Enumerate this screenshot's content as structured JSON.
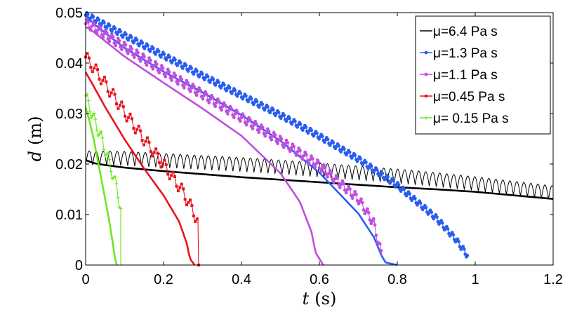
{
  "chart_data": {
    "type": "line",
    "xlabel_var": "t",
    "xlabel_unit": "(s)",
    "ylabel_var": "d",
    "ylabel_unit": "(m)",
    "xlim": [
      0,
      1.2
    ],
    "ylim": [
      0,
      0.05
    ],
    "xticks": [
      "0",
      "0.2",
      "0.4",
      "0.6",
      "0.8",
      "1",
      "1.2"
    ],
    "yticks": [
      "0",
      "0.01",
      "0.02",
      "0.03",
      "0.04",
      "0.05"
    ],
    "legend_position": "top-right",
    "series": [
      {
        "name": "μ=6.4 Pa s",
        "color": "#000000",
        "marker": "none",
        "smooth": {
          "x": [
            0,
            0.02,
            0.05,
            0.1,
            0.2,
            0.3,
            0.4,
            0.5,
            0.6,
            0.7,
            0.8,
            0.9,
            1.0,
            1.1,
            1.2
          ],
          "y": [
            0.0208,
            0.0202,
            0.0198,
            0.0193,
            0.0186,
            0.018,
            0.0174,
            0.0169,
            0.0164,
            0.0159,
            0.0154,
            0.015,
            0.0145,
            0.0138,
            0.0131
          ]
        },
        "oscillating": {
          "x": [
            0,
            0.1,
            0.2,
            0.3,
            0.4,
            0.5,
            0.6,
            0.7,
            0.8,
            0.9,
            1.0,
            1.1,
            1.2
          ],
          "y": [
            0.0212,
            0.0211,
            0.0207,
            0.0203,
            0.0199,
            0.0194,
            0.0188,
            0.0182,
            0.0176,
            0.0169,
            0.0161,
            0.0152,
            0.0143
          ],
          "amplitude": 0.0014,
          "period": 0.018,
          "x_end": 1.2
        }
      },
      {
        "name": "μ=1.3 Pa s",
        "color": "#2a5ef0",
        "marker": "dot",
        "smooth": {
          "x": [
            0,
            0.02,
            0.1,
            0.2,
            0.3,
            0.4,
            0.5,
            0.6,
            0.7,
            0.74,
            0.76,
            0.77,
            0.8
          ],
          "y": [
            0.0495,
            0.0478,
            0.043,
            0.0383,
            0.0342,
            0.0297,
            0.0246,
            0.0183,
            0.0102,
            0.0055,
            0.0018,
            0.0005,
            0
          ]
        },
        "oscillating": {
          "x": [
            0,
            0.02,
            0.1,
            0.2,
            0.3,
            0.4,
            0.5,
            0.6,
            0.7,
            0.8,
            0.9,
            0.95,
            0.98
          ],
          "y": [
            0.0495,
            0.0488,
            0.0455,
            0.0415,
            0.0375,
            0.0336,
            0.0297,
            0.0255,
            0.021,
            0.0158,
            0.0093,
            0.0051,
            0.0019
          ],
          "amplitude": 0.0006,
          "period": 0.014,
          "x_end": 0.98
        }
      },
      {
        "name": "μ=1.1 Pa s",
        "color": "#c04ee0",
        "marker": "dot",
        "smooth": {
          "x": [
            0,
            0.02,
            0.1,
            0.2,
            0.3,
            0.4,
            0.5,
            0.55,
            0.58,
            0.59,
            0.61
          ],
          "y": [
            0.0472,
            0.0462,
            0.0413,
            0.0361,
            0.031,
            0.0256,
            0.0182,
            0.0125,
            0.0065,
            0.0025,
            0
          ]
        },
        "oscillating": {
          "x": [
            0,
            0.02,
            0.1,
            0.2,
            0.3,
            0.4,
            0.5,
            0.6,
            0.7,
            0.74,
            0.76
          ],
          "y": [
            0.0478,
            0.0472,
            0.0432,
            0.0384,
            0.0338,
            0.0292,
            0.0246,
            0.0197,
            0.0131,
            0.0082,
            0.0018
          ],
          "amplitude": 0.0009,
          "period": 0.016,
          "x_end": 0.76
        }
      },
      {
        "name": "μ=0.45 Pa s",
        "color": "#e8141d",
        "marker": "square",
        "smooth": {
          "x": [
            0,
            0.02,
            0.05,
            0.1,
            0.15,
            0.2,
            0.24,
            0.26,
            0.265,
            0.27,
            0.28
          ],
          "y": [
            0.0382,
            0.0355,
            0.0313,
            0.0249,
            0.0191,
            0.0138,
            0.0086,
            0.0042,
            0.0022,
            0.001,
            0
          ]
        },
        "oscillating": {
          "x": [
            0,
            0.02,
            0.05,
            0.1,
            0.15,
            0.2,
            0.25,
            0.29
          ],
          "y": [
            0.0412,
            0.0392,
            0.0359,
            0.0303,
            0.0249,
            0.0199,
            0.0145,
            0.0085
          ],
          "amplitude": 0.0012,
          "period": 0.022,
          "x_end": 0.29,
          "drop_to": 0.0
        }
      },
      {
        "name": "μ= 0.15 Pa s",
        "color": "#6ee81e",
        "marker": "plus",
        "smooth": {
          "x": [
            0,
            0.01,
            0.02,
            0.04,
            0.06,
            0.07,
            0.075,
            0.08
          ],
          "y": [
            0.0312,
            0.0285,
            0.0252,
            0.0172,
            0.009,
            0.0042,
            0.0015,
            0
          ]
        },
        "oscillating": {
          "x": [
            0,
            0.01,
            0.02,
            0.04,
            0.06,
            0.08,
            0.09
          ],
          "y": [
            0.0335,
            0.0312,
            0.0292,
            0.0252,
            0.0205,
            0.0152,
            0.0112
          ],
          "amplitude": 0.0012,
          "period": 0.018,
          "x_end": 0.09,
          "drop_to": 0.0
        }
      }
    ]
  }
}
